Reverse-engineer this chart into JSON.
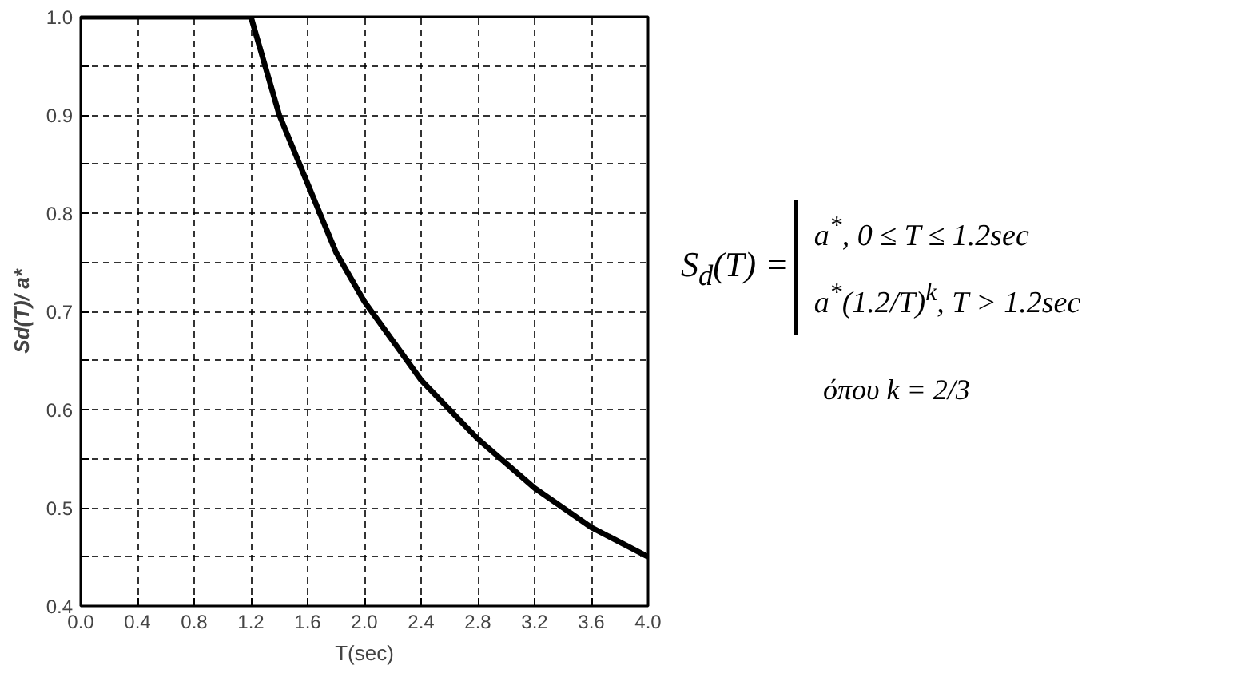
{
  "chart_data": {
    "type": "line",
    "xlabel": "T(sec)",
    "ylabel": "Sd(T)/ a*",
    "x": [
      0,
      0.4,
      0.8,
      1.2,
      1.4,
      1.6,
      1.8,
      2.0,
      2.4,
      2.8,
      3.2,
      3.6,
      4.0
    ],
    "series": [
      {
        "color": "#000000",
        "values": [
          1.0,
          1.0,
          1.0,
          1.0,
          0.9,
          0.83,
          0.76,
          0.71,
          0.63,
          0.57,
          0.52,
          0.48,
          0.45
        ]
      }
    ],
    "xlim": [
      0,
      4
    ],
    "ylim": [
      0.4,
      1.0
    ],
    "xticks": [
      {
        "value": 0,
        "label": "0.0"
      },
      {
        "value": 0.4,
        "label": "0.4"
      },
      {
        "value": 0.8,
        "label": "0.8"
      },
      {
        "value": 1.2,
        "label": "1.2"
      },
      {
        "value": 1.6,
        "label": "1.6"
      },
      {
        "value": 2.0,
        "label": "2.0"
      },
      {
        "value": 2.4,
        "label": "2.4"
      },
      {
        "value": 2.8,
        "label": "2.8"
      },
      {
        "value": 3.2,
        "label": "3.2"
      },
      {
        "value": 3.6,
        "label": "3.6"
      },
      {
        "value": 4.0,
        "label": "4.0"
      }
    ],
    "yticks": [
      {
        "value": 0.4,
        "label": "0.4"
      },
      {
        "value": 0.45,
        "label": null
      },
      {
        "value": 0.5,
        "label": "0.5"
      },
      {
        "value": 0.55,
        "label": null
      },
      {
        "value": 0.6,
        "label": "0.6"
      },
      {
        "value": 0.65,
        "label": null
      },
      {
        "value": 0.7,
        "label": "0.7"
      },
      {
        "value": 0.75,
        "label": null
      },
      {
        "value": 0.8,
        "label": "0.8"
      },
      {
        "value": 0.85,
        "label": null
      },
      {
        "value": 0.9,
        "label": "0.9"
      },
      {
        "value": 0.95,
        "label": null
      },
      {
        "value": 1.0,
        "label": "1.0"
      }
    ],
    "grid": true,
    "line_style": "solid",
    "annotations": [
      "S$_{d}$(T) =",
      "a$^{*}$,  0 ≤ T ≤ 1.2sec",
      "a$^{*}$(1.2/T)$^{k}$,  T > 1.2sec",
      "όπου k = 2/3"
    ]
  }
}
